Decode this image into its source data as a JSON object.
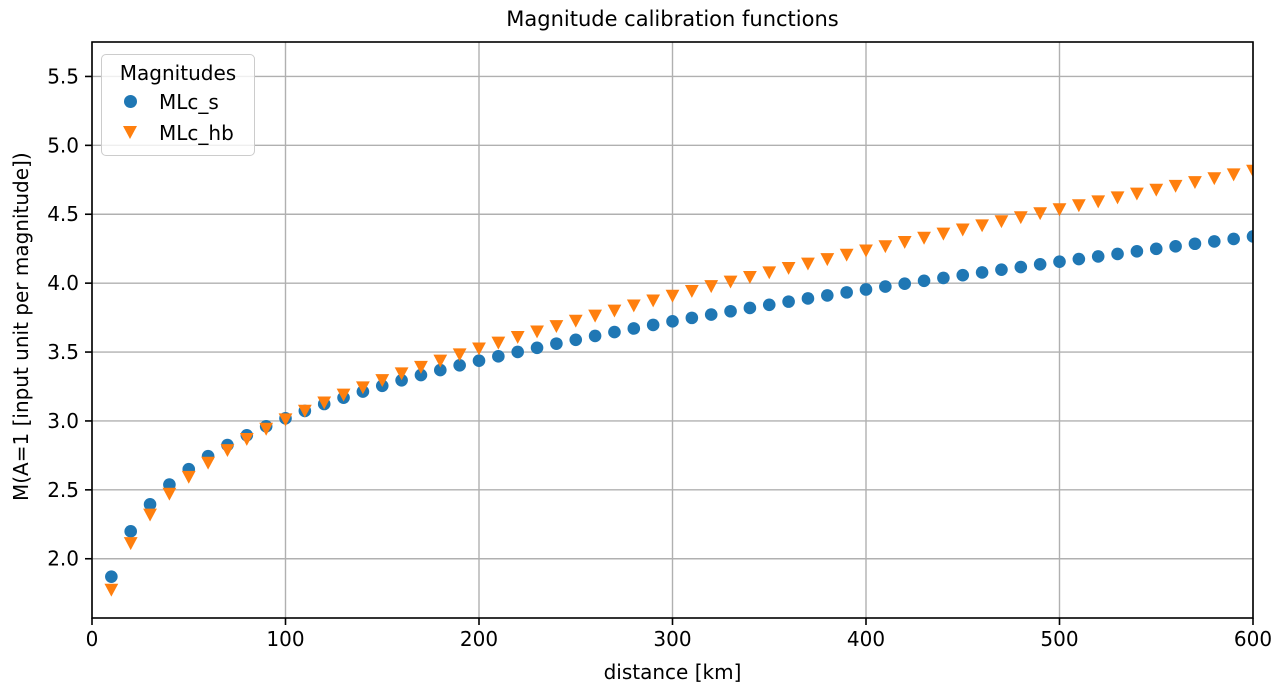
{
  "chart_data": {
    "type": "scatter",
    "title": "Magnitude calibration functions",
    "xlabel": "distance [km]",
    "ylabel": "M(A=1 [input unit per magnitude])",
    "xlim": [
      0,
      600
    ],
    "ylim": [
      1.57,
      5.75
    ],
    "xticks": [
      0,
      100,
      200,
      300,
      400,
      500,
      600
    ],
    "yticks": [
      2.0,
      2.5,
      3.0,
      3.5,
      4.0,
      4.5,
      5.0,
      5.5
    ],
    "grid": true,
    "grid_color": "#b0b0b0",
    "legend": {
      "title": "Magnitudes",
      "position": "upper-left"
    },
    "x": [
      10,
      20,
      30,
      40,
      50,
      60,
      70,
      80,
      90,
      100,
      110,
      120,
      130,
      140,
      150,
      160,
      170,
      180,
      190,
      200,
      210,
      220,
      230,
      240,
      250,
      260,
      270,
      280,
      290,
      300,
      310,
      320,
      330,
      340,
      350,
      360,
      370,
      380,
      390,
      400,
      410,
      420,
      430,
      440,
      450,
      460,
      470,
      480,
      490,
      500,
      510,
      520,
      530,
      540,
      550,
      560,
      570,
      580,
      590,
      600
    ],
    "series": [
      {
        "name": "MLc_s",
        "marker": "circle",
        "color": "#1f77b4",
        "values": [
          1.87,
          2.199,
          2.395,
          2.538,
          2.65,
          2.744,
          2.825,
          2.896,
          2.961,
          3.019,
          3.073,
          3.123,
          3.169,
          3.213,
          3.255,
          3.295,
          3.333,
          3.369,
          3.404,
          3.437,
          3.469,
          3.501,
          3.531,
          3.561,
          3.589,
          3.617,
          3.645,
          3.671,
          3.697,
          3.723,
          3.748,
          3.772,
          3.796,
          3.82,
          3.843,
          3.866,
          3.889,
          3.911,
          3.933,
          3.954,
          3.975,
          3.996,
          4.017,
          4.038,
          4.058,
          4.078,
          4.098,
          4.117,
          4.137,
          4.156,
          4.175,
          4.194,
          4.212,
          4.231,
          4.249,
          4.267,
          4.286,
          4.303,
          4.321,
          4.339
        ]
      },
      {
        "name": "MLc_hb",
        "marker": "triangle-down",
        "color": "#ff7f0e",
        "values": [
          1.775,
          2.113,
          2.32,
          2.472,
          2.594,
          2.697,
          2.788,
          2.869,
          2.943,
          3.011,
          3.074,
          3.134,
          3.191,
          3.244,
          3.296,
          3.345,
          3.392,
          3.438,
          3.483,
          3.526,
          3.568,
          3.609,
          3.649,
          3.688,
          3.727,
          3.764,
          3.801,
          3.838,
          3.874,
          3.909,
          3.943,
          3.978,
          4.011,
          4.045,
          4.078,
          4.11,
          4.142,
          4.174,
          4.206,
          4.237,
          4.268,
          4.299,
          4.329,
          4.359,
          4.389,
          4.419,
          4.449,
          4.478,
          4.507,
          4.536,
          4.565,
          4.593,
          4.622,
          4.65,
          4.678,
          4.706,
          4.733,
          4.761,
          4.789,
          4.816
        ]
      }
    ]
  },
  "colors": {
    "series_blue": "#1f77b4",
    "series_orange": "#ff7f0e",
    "grid": "#b0b0b0",
    "spine": "#000000",
    "legend_border": "#cccccc",
    "background": "#ffffff"
  }
}
